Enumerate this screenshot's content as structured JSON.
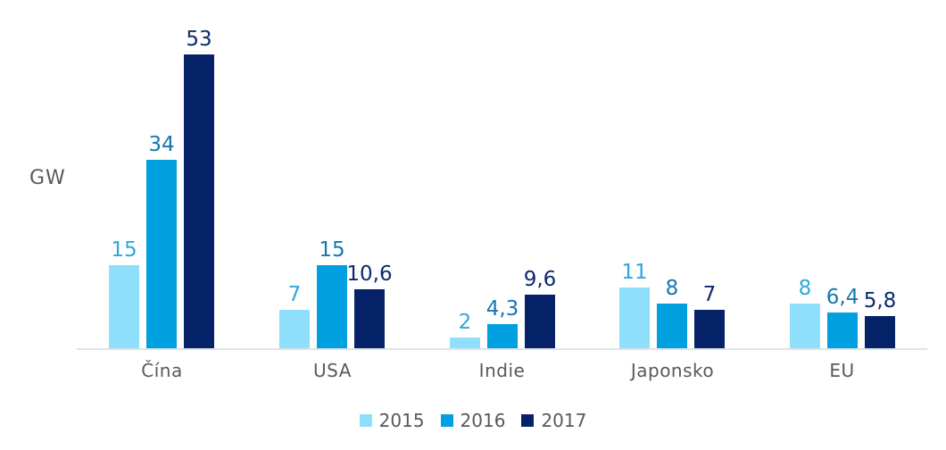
{
  "chart_data": {
    "type": "bar",
    "title": "",
    "ylabel": "GW",
    "xlabel": "",
    "categories": [
      "Čína",
      "USA",
      "Indie",
      "Japonsko",
      "EU"
    ],
    "series": [
      {
        "name": "2015",
        "values": [
          15,
          7,
          2,
          11,
          8
        ],
        "labels": [
          "15",
          "7",
          "2",
          "11",
          "8"
        ],
        "color": "#8EDFFB",
        "label_color": "#2EA7DC"
      },
      {
        "name": "2016",
        "values": [
          34,
          15,
          4.3,
          8,
          6.4
        ],
        "labels": [
          "34",
          "15",
          "4,3",
          "8",
          "6,4"
        ],
        "color": "#009FE0",
        "label_color": "#1677AE"
      },
      {
        "name": "2017",
        "values": [
          53,
          10.6,
          9.6,
          7,
          5.8
        ],
        "labels": [
          "53",
          "10,6",
          "9,6",
          "7",
          "5,8"
        ],
        "color": "#052168",
        "label_color": "#0B2B6E"
      }
    ],
    "legend": {
      "position": "bottom",
      "entries": [
        "2015",
        "2016",
        "2017"
      ]
    },
    "axes": {
      "y_axis_visible": false,
      "x_baseline_visible": true,
      "grid": false,
      "ylim": [
        0,
        55
      ]
    },
    "colors": {
      "axis_text": "#595959",
      "baseline": "#DDE3E7",
      "background": "#FFFFFF"
    }
  }
}
